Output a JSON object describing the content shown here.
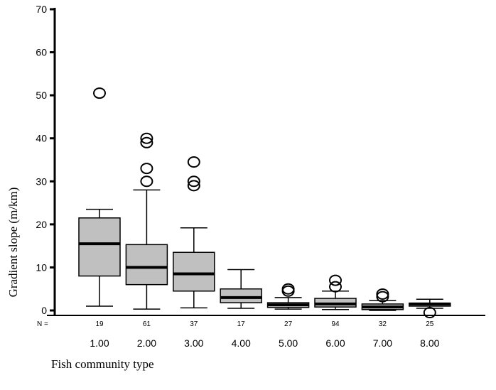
{
  "chart_data": {
    "type": "boxplot",
    "ylabel": "Gradient slope (m/km)",
    "xlabel": "Fish community type",
    "ylim": [
      0,
      70
    ],
    "yticks": [
      0,
      10,
      20,
      30,
      40,
      50,
      60,
      70
    ],
    "n_prefix": "N =",
    "groups": [
      {
        "label": "1.00",
        "n": "19",
        "whisker_low": 1,
        "q1": 8,
        "median": 15.5,
        "q3": 21.5,
        "whisker_high": 23.5,
        "outliers": [
          50.5
        ]
      },
      {
        "label": "2.00",
        "n": "61",
        "whisker_low": 0.3,
        "q1": 6,
        "median": 10,
        "q3": 15.3,
        "whisker_high": 28,
        "outliers": [
          30,
          33,
          39,
          40
        ]
      },
      {
        "label": "3.00",
        "n": "37",
        "whisker_low": 0.6,
        "q1": 4.5,
        "median": 8.5,
        "q3": 13.5,
        "whisker_high": 19.2,
        "outliers": [
          29,
          30,
          34.5
        ]
      },
      {
        "label": "4.00",
        "n": "17",
        "whisker_low": 0.5,
        "q1": 1.8,
        "median": 3,
        "q3": 5,
        "whisker_high": 9.5,
        "outliers": []
      },
      {
        "label": "5.00",
        "n": "27",
        "whisker_low": 0.3,
        "q1": 0.7,
        "median": 1.3,
        "q3": 1.8,
        "whisker_high": 3,
        "outliers": [
          4.5,
          5
        ]
      },
      {
        "label": "6.00",
        "n": "94",
        "whisker_low": 0.2,
        "q1": 0.8,
        "median": 1.5,
        "q3": 2.8,
        "whisker_high": 4.5,
        "outliers": [
          5.5,
          7
        ]
      },
      {
        "label": "7.00",
        "n": "32",
        "whisker_low": 0,
        "q1": 0.2,
        "median": 0.8,
        "q3": 1.5,
        "whisker_high": 2.3,
        "outliers": [
          3.2,
          3.8
        ]
      },
      {
        "label": "8.00",
        "n": "25",
        "whisker_low": 0.5,
        "q1": 1,
        "median": 1.5,
        "q3": 1.7,
        "whisker_high": 2.6,
        "outliers": [
          -0.5
        ]
      }
    ],
    "colors": {
      "box_fill": "#c0c0c0",
      "stroke": "#000000"
    }
  }
}
